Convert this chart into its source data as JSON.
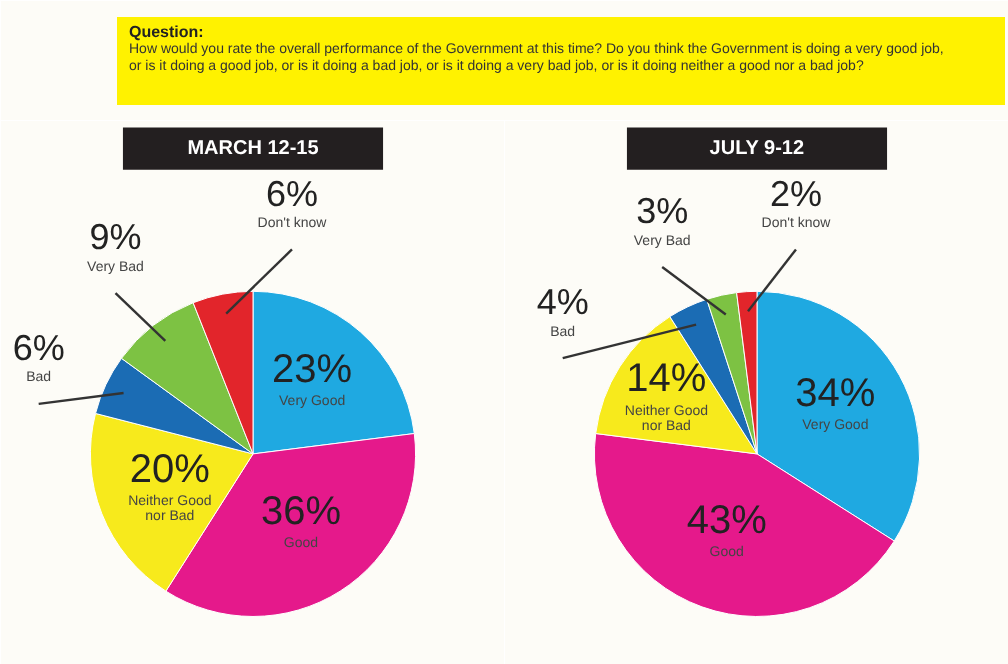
{
  "chart_data": [
    {
      "type": "other",
      "title": "Question:",
      "subtitle": "How would you rate the overall performance of the Government at this time? Do you think the Government is doing a very good job, or is it doing a good job, or is it doing a bad job, or is it doing a very bad job, or is it doing neither a good nor a bad job?",
      "color": "#fff200"
    },
    {
      "type": "pie",
      "title": "MARCH 12-15",
      "categories": [
        "Very Good",
        "Good",
        "Neither Good nor Bad",
        "Bad",
        "Very Bad",
        "Don't know"
      ],
      "values": [
        23,
        36,
        20,
        6,
        9,
        6
      ],
      "value_labels": [
        "23%",
        "36%",
        "20%",
        "6%",
        "9%",
        "6%"
      ],
      "colors": [
        "#1fa9e1",
        "#e5198b",
        "#f7ea1c",
        "#1b6cb4",
        "#7dc243",
        "#e2252b"
      ]
    },
    {
      "type": "pie",
      "title": "JULY 9-12",
      "categories": [
        "Very Good",
        "Good",
        "Neither Good nor Bad",
        "Bad",
        "Very Bad",
        "Don't know"
      ],
      "values": [
        34,
        43,
        14,
        4,
        3,
        2
      ],
      "value_labels": [
        "34%",
        "43%",
        "14%",
        "4%",
        "3%",
        "2%"
      ],
      "colors": [
        "#1fa9e1",
        "#e5198b",
        "#f7ea1c",
        "#1b6cb4",
        "#7dc243",
        "#e2252b"
      ]
    }
  ]
}
